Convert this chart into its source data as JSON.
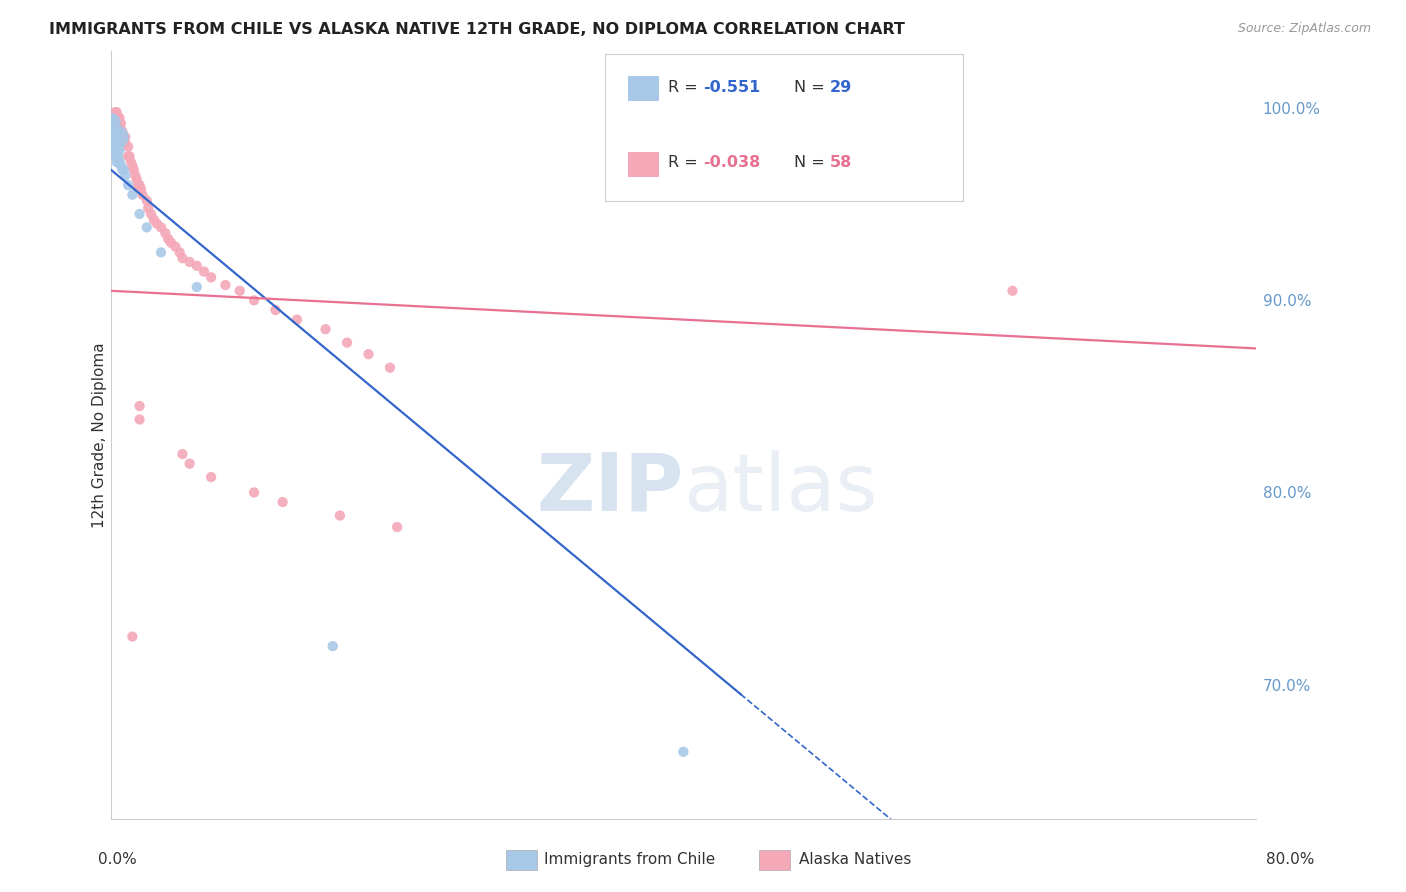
{
  "title": "IMMIGRANTS FROM CHILE VS ALASKA NATIVE 12TH GRADE, NO DIPLOMA CORRELATION CHART",
  "source": "Source: ZipAtlas.com",
  "ylabel": "12th Grade, No Diploma",
  "x_range": [
    0.0,
    0.8
  ],
  "y_range": [
    0.63,
    1.03
  ],
  "blue_color": "#a8c8e8",
  "pink_color": "#f4a8b8",
  "blue_line_color": "#3366cc",
  "pink_line_color": "#e87090",
  "blue_line_x0": 0.0,
  "blue_line_y0": 0.968,
  "blue_line_x1": 0.44,
  "blue_line_y1": 0.695,
  "blue_line_dash_x1": 0.75,
  "pink_line_x0": 0.0,
  "pink_line_y0": 0.905,
  "pink_line_x1": 0.8,
  "pink_line_y1": 0.875,
  "blue_scatter": [
    [
      0.001,
      0.995
    ],
    [
      0.001,
      0.99
    ],
    [
      0.001,
      0.988
    ],
    [
      0.002,
      0.993
    ],
    [
      0.002,
      0.99
    ],
    [
      0.002,
      0.985
    ],
    [
      0.003,
      0.99
    ],
    [
      0.003,
      0.985
    ],
    [
      0.003,
      0.98
    ],
    [
      0.003,
      0.975
    ],
    [
      0.004,
      0.985
    ],
    [
      0.004,
      0.978
    ],
    [
      0.004,
      0.972
    ],
    [
      0.005,
      0.98
    ],
    [
      0.005,
      0.975
    ],
    [
      0.006,
      0.978
    ],
    [
      0.006,
      0.972
    ],
    [
      0.007,
      0.97
    ],
    [
      0.008,
      0.968
    ],
    [
      0.009,
      0.968
    ],
    [
      0.01,
      0.965
    ],
    [
      0.012,
      0.96
    ],
    [
      0.015,
      0.955
    ],
    [
      0.02,
      0.945
    ],
    [
      0.025,
      0.938
    ],
    [
      0.035,
      0.925
    ],
    [
      0.06,
      0.907
    ],
    [
      0.155,
      0.72
    ],
    [
      0.4,
      0.665
    ]
  ],
  "blue_scatter_sizes": [
    50,
    55,
    60,
    100,
    55,
    200,
    80,
    55,
    130,
    55,
    300,
    55,
    55,
    55,
    55,
    55,
    60,
    55,
    55,
    55,
    55,
    55,
    55,
    55,
    55,
    55,
    55,
    55,
    55
  ],
  "pink_scatter": [
    [
      0.003,
      0.998
    ],
    [
      0.004,
      0.998
    ],
    [
      0.005,
      0.995
    ],
    [
      0.006,
      0.995
    ],
    [
      0.006,
      0.99
    ],
    [
      0.007,
      0.992
    ],
    [
      0.008,
      0.988
    ],
    [
      0.009,
      0.985
    ],
    [
      0.01,
      0.985
    ],
    [
      0.01,
      0.982
    ],
    [
      0.012,
      0.98
    ],
    [
      0.012,
      0.975
    ],
    [
      0.013,
      0.975
    ],
    [
      0.014,
      0.972
    ],
    [
      0.015,
      0.97
    ],
    [
      0.016,
      0.968
    ],
    [
      0.017,
      0.965
    ],
    [
      0.018,
      0.963
    ],
    [
      0.019,
      0.96
    ],
    [
      0.02,
      0.96
    ],
    [
      0.021,
      0.958
    ],
    [
      0.022,
      0.955
    ],
    [
      0.025,
      0.952
    ],
    [
      0.026,
      0.948
    ],
    [
      0.028,
      0.945
    ],
    [
      0.03,
      0.942
    ],
    [
      0.032,
      0.94
    ],
    [
      0.035,
      0.938
    ],
    [
      0.038,
      0.935
    ],
    [
      0.04,
      0.932
    ],
    [
      0.042,
      0.93
    ],
    [
      0.045,
      0.928
    ],
    [
      0.048,
      0.925
    ],
    [
      0.05,
      0.922
    ],
    [
      0.055,
      0.92
    ],
    [
      0.06,
      0.918
    ],
    [
      0.065,
      0.915
    ],
    [
      0.07,
      0.912
    ],
    [
      0.08,
      0.908
    ],
    [
      0.09,
      0.905
    ],
    [
      0.1,
      0.9
    ],
    [
      0.115,
      0.895
    ],
    [
      0.13,
      0.89
    ],
    [
      0.15,
      0.885
    ],
    [
      0.165,
      0.878
    ],
    [
      0.18,
      0.872
    ],
    [
      0.195,
      0.865
    ],
    [
      0.02,
      0.845
    ],
    [
      0.02,
      0.838
    ],
    [
      0.05,
      0.82
    ],
    [
      0.055,
      0.815
    ],
    [
      0.07,
      0.808
    ],
    [
      0.1,
      0.8
    ],
    [
      0.12,
      0.795
    ],
    [
      0.16,
      0.788
    ],
    [
      0.2,
      0.782
    ],
    [
      0.63,
      0.905
    ],
    [
      0.015,
      0.725
    ]
  ],
  "pink_scatter_sizes": [
    55,
    55,
    55,
    55,
    55,
    55,
    55,
    55,
    55,
    55,
    55,
    55,
    55,
    55,
    55,
    55,
    55,
    55,
    55,
    55,
    55,
    55,
    55,
    55,
    55,
    55,
    55,
    55,
    55,
    55,
    55,
    55,
    55,
    55,
    55,
    55,
    55,
    55,
    55,
    55,
    55,
    55,
    55,
    55,
    55,
    55,
    55,
    55,
    55,
    55,
    55,
    55,
    55,
    55,
    55,
    55,
    55,
    55
  ],
  "watermark_zip": "ZIP",
  "watermark_atlas": "atlas",
  "background_color": "#ffffff",
  "grid_color": "#d0d0d0",
  "legend_r_blue": "-0.551",
  "legend_n_blue": "29",
  "legend_r_pink": "-0.038",
  "legend_n_pink": "58"
}
